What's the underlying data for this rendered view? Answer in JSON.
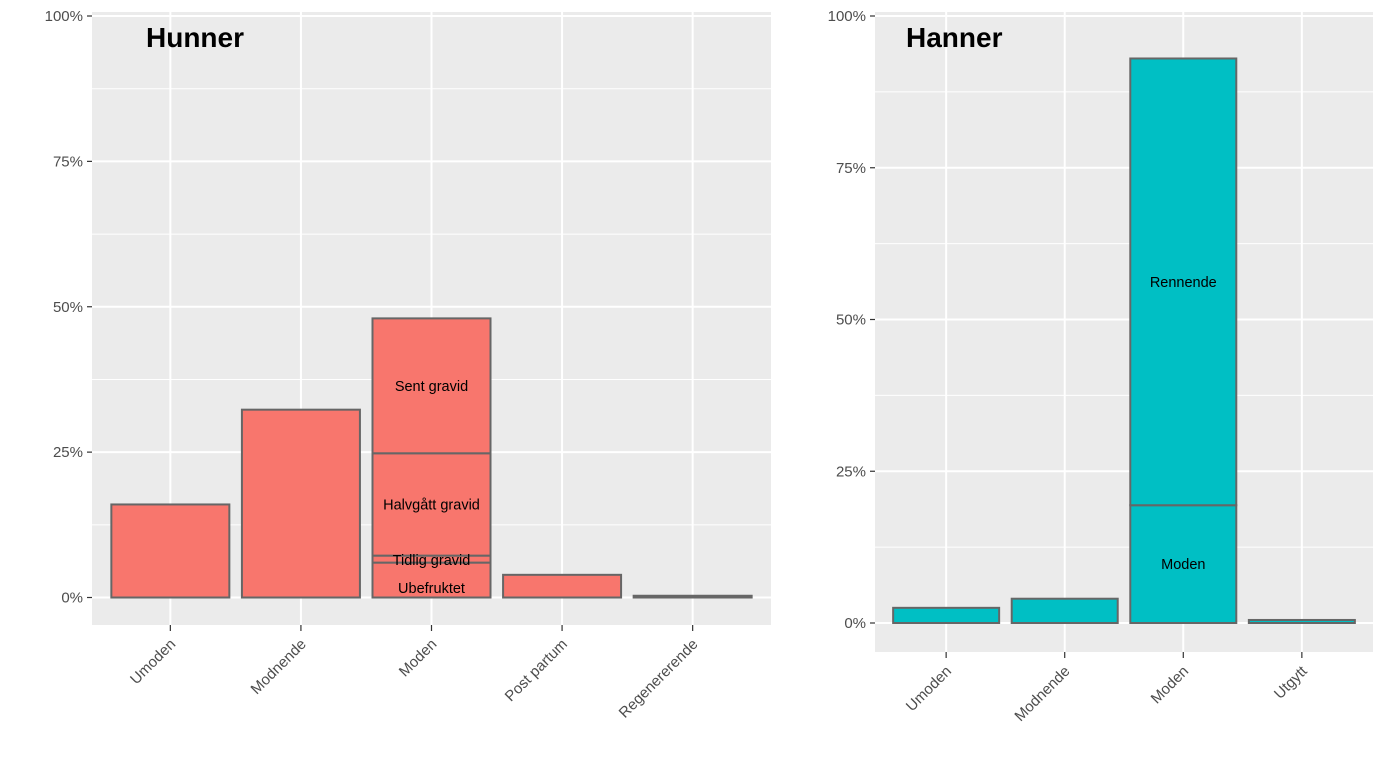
{
  "chart_data": [
    {
      "type": "bar",
      "stacked": true,
      "title": "Hunner",
      "fill_color": "#F8766D",
      "outline_color": "#666666",
      "y_ticks": [
        "0%",
        "25%",
        "50%",
        "75%",
        "100%"
      ],
      "ylim": [
        0,
        100
      ],
      "categories": [
        "Umoden",
        "Modnende",
        "Moden",
        "Post partum",
        "Regenererende"
      ],
      "bars": [
        {
          "category": "Umoden",
          "segments": [
            {
              "label": "",
              "value": 16
            }
          ]
        },
        {
          "category": "Modnende",
          "segments": [
            {
              "label": "",
              "value": 32.3
            }
          ]
        },
        {
          "category": "Moden",
          "segments": [
            {
              "label": "Ubefruktet",
              "value": 6
            },
            {
              "label": "Tidlig gravid",
              "value": 1.2
            },
            {
              "label": "Halvgått gravid",
              "value": 17.6
            },
            {
              "label": "Sent gravid",
              "value": 23.2
            }
          ]
        },
        {
          "category": "Post partum",
          "segments": [
            {
              "label": "",
              "value": 3.9
            }
          ]
        },
        {
          "category": "Regenererende",
          "segments": [
            {
              "label": "",
              "value": 0.3
            }
          ]
        }
      ]
    },
    {
      "type": "bar",
      "stacked": true,
      "title": "Hanner",
      "fill_color": "#00BFC4",
      "outline_color": "#666666",
      "y_ticks": [
        "0%",
        "25%",
        "50%",
        "75%",
        "100%"
      ],
      "ylim": [
        0,
        100
      ],
      "categories": [
        "Umoden",
        "Modnende",
        "Moden",
        "Utgytt"
      ],
      "bars": [
        {
          "category": "Umoden",
          "segments": [
            {
              "label": "",
              "value": 2.5
            }
          ]
        },
        {
          "category": "Modnende",
          "segments": [
            {
              "label": "",
              "value": 4
            }
          ]
        },
        {
          "category": "Moden",
          "segments": [
            {
              "label": "Moden",
              "value": 19.4
            },
            {
              "label": "Rennende",
              "value": 73.6
            }
          ]
        },
        {
          "category": "Utgytt",
          "segments": [
            {
              "label": "",
              "value": 0.5
            }
          ]
        }
      ]
    }
  ]
}
